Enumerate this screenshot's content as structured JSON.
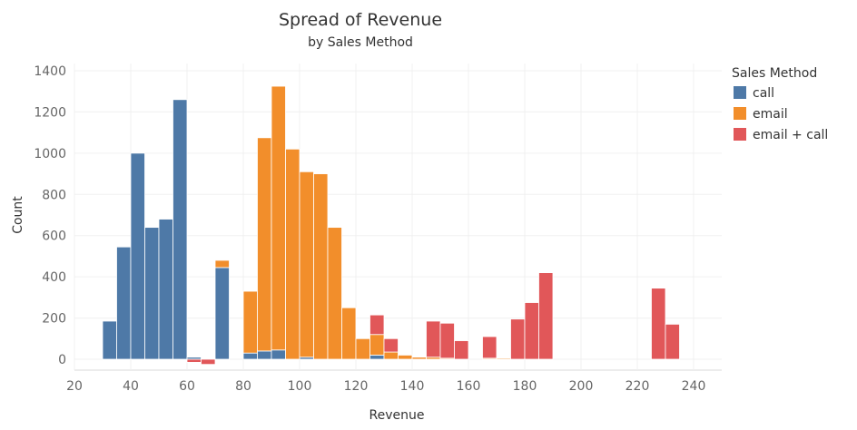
{
  "chart_data": {
    "type": "bar",
    "subtype": "stacked-histogram",
    "title": "Spread of Revenue",
    "subtitle": "by Sales Method",
    "xlabel": "Revenue",
    "ylabel": "Count",
    "xlim": [
      20,
      250
    ],
    "ylim": [
      -60,
      1450
    ],
    "bin_width": 5,
    "x_ticks": [
      20,
      40,
      60,
      80,
      100,
      120,
      140,
      160,
      180,
      200,
      220,
      240
    ],
    "y_ticks": [
      0,
      200,
      400,
      600,
      800,
      1000,
      1200,
      1400
    ],
    "grid": true,
    "legend_position": "right",
    "legend": {
      "title": "Sales Method",
      "labels": [
        "call",
        "email",
        "email + call"
      ]
    },
    "colors": {
      "call": "#4e79a7",
      "email": "#f28e2b",
      "email + call": "#e15759"
    },
    "series": [
      {
        "name": "call",
        "x": [
          30,
          35,
          40,
          45,
          50,
          55,
          60,
          65,
          70,
          75,
          80,
          85,
          90,
          95,
          100,
          125,
          145,
          150,
          165,
          170
        ],
        "values": [
          185,
          545,
          1000,
          640,
          680,
          1260,
          10,
          0,
          445,
          0,
          30,
          40,
          45,
          0,
          10,
          20,
          0,
          0,
          0,
          0
        ]
      },
      {
        "name": "email",
        "x": [
          60,
          65,
          70,
          75,
          80,
          85,
          90,
          95,
          100,
          105,
          110,
          115,
          120,
          125,
          130,
          135,
          140,
          145,
          150,
          165,
          170
        ],
        "values": [
          0,
          0,
          35,
          0,
          300,
          1035,
          1280,
          1020,
          900,
          900,
          640,
          250,
          100,
          100,
          35,
          20,
          10,
          10,
          5,
          5,
          5
        ]
      },
      {
        "name": "email + call",
        "x": [
          55,
          60,
          65,
          70,
          75,
          80,
          85,
          90,
          95,
          100,
          105,
          110,
          115,
          120,
          125,
          130,
          135,
          140,
          145,
          150,
          155,
          160,
          165,
          170,
          175,
          180,
          185,
          190,
          195,
          220,
          225,
          230,
          235
        ],
        "values": [
          0,
          -15,
          -25,
          0,
          0,
          0,
          0,
          0,
          0,
          0,
          0,
          0,
          0,
          0,
          95,
          65,
          0,
          0,
          175,
          170,
          90,
          0,
          105,
          0,
          195,
          275,
          420,
          0,
          0,
          0,
          345,
          170,
          0
        ]
      }
    ]
  }
}
